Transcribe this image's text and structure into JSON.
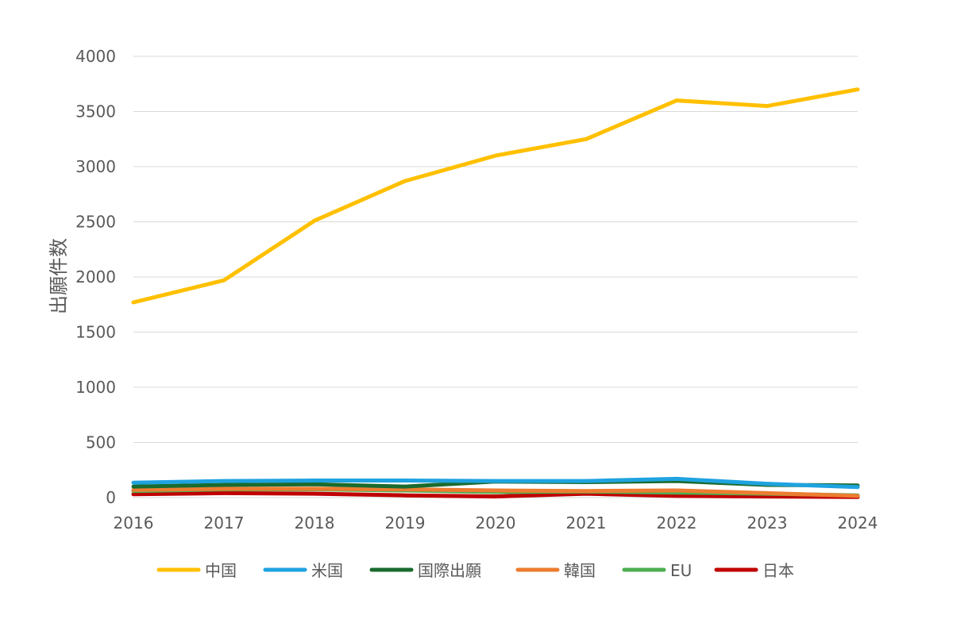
{
  "chart_data": {
    "type": "line",
    "title": "",
    "xlabel": "",
    "ylabel": "出願件数",
    "x": [
      "2016",
      "2017",
      "2018",
      "2019",
      "2020",
      "2021",
      "2022",
      "2023",
      "2024"
    ],
    "ylim": [
      0,
      4000
    ],
    "yticks": [
      "0",
      "500",
      "1000",
      "1500",
      "2000",
      "2500",
      "3000",
      "3500",
      "4000"
    ],
    "grid": true,
    "legend_position": "bottom",
    "series": [
      {
        "name": "中国",
        "color": "#FFC000",
        "values": [
          1770,
          1970,
          2510,
          2870,
          3100,
          3250,
          3600,
          3550,
          3700
        ]
      },
      {
        "name": "米国",
        "color": "#1FA3E0",
        "values": [
          135,
          150,
          155,
          155,
          150,
          150,
          170,
          125,
          95
        ]
      },
      {
        "name": "国際出願",
        "color": "#1A6B2E",
        "values": [
          100,
          115,
          120,
          100,
          145,
          140,
          150,
          115,
          110
        ]
      },
      {
        "name": "韓国",
        "color": "#ED7D31",
        "values": [
          70,
          80,
          80,
          75,
          65,
          60,
          65,
          40,
          15
        ]
      },
      {
        "name": "EU",
        "color": "#4CAF50",
        "values": [
          60,
          75,
          75,
          65,
          50,
          55,
          45,
          35,
          20
        ]
      },
      {
        "name": "日本",
        "color": "#C00000",
        "values": [
          30,
          40,
          35,
          20,
          10,
          35,
          15,
          10,
          5
        ]
      }
    ]
  }
}
